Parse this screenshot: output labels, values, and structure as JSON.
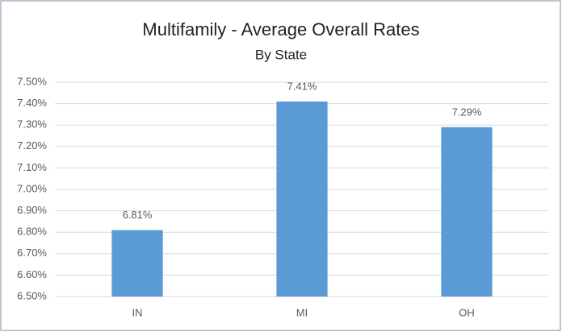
{
  "chart_data": {
    "type": "bar",
    "title": "Multifamily - Average Overall Rates",
    "subtitle": "By State",
    "categories": [
      "IN",
      "MI",
      "OH"
    ],
    "values": [
      6.81,
      7.41,
      7.29
    ],
    "value_labels": [
      "6.81%",
      "7.41%",
      "7.29%"
    ],
    "color": "#5b9bd5",
    "ylim": [
      6.5,
      7.5
    ],
    "yticks": [
      {
        "value": 6.5,
        "label": "6.50%"
      },
      {
        "value": 6.6,
        "label": "6.60%"
      },
      {
        "value": 6.7,
        "label": "6.70%"
      },
      {
        "value": 6.8,
        "label": "6.80%"
      },
      {
        "value": 6.9,
        "label": "6.90%"
      },
      {
        "value": 7.0,
        "label": "7.00%"
      },
      {
        "value": 7.1,
        "label": "7.10%"
      },
      {
        "value": 7.2,
        "label": "7.20%"
      },
      {
        "value": 7.3,
        "label": "7.30%"
      },
      {
        "value": 7.4,
        "label": "7.40%"
      },
      {
        "value": 7.5,
        "label": "7.50%"
      }
    ],
    "grid": true
  }
}
